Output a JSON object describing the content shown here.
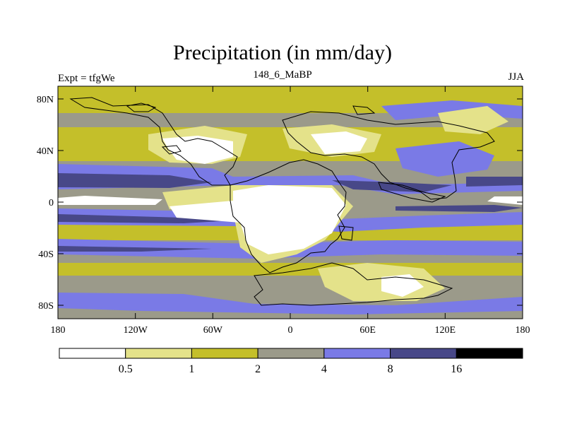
{
  "chart_data": {
    "type": "heatmap",
    "title": "Precipitation (in mm/day)",
    "subtitle_left": "Expt = tfgWe",
    "subtitle_center": "148_6_MaBP",
    "subtitle_right": "JJA",
    "x_ticks": [
      "180",
      "120W",
      "60W",
      "0",
      "60E",
      "120E",
      "180"
    ],
    "y_ticks": [
      "80N",
      "40N",
      "0",
      "40S",
      "80S"
    ],
    "x_range": [
      -180,
      180
    ],
    "y_range": [
      -90,
      90
    ],
    "colorbar": {
      "levels": [
        "0.5",
        "1",
        "2",
        "4",
        "8",
        "16"
      ],
      "colors": [
        "#ffffff",
        "#e4e28a",
        "#c4bf2a",
        "#9b9a8a",
        "#7a7ae6",
        "#484888",
        "#000000"
      ]
    }
  }
}
